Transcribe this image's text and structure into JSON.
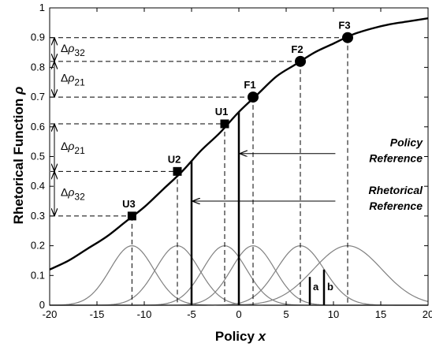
{
  "chart_data": {
    "type": "line",
    "xlabel": "Policy x",
    "ylabel": "Rhetorical Function ρ",
    "xlim": [
      -20,
      20
    ],
    "ylim": [
      0,
      1
    ],
    "x_ticks": [
      -20,
      -15,
      -10,
      -5,
      0,
      5,
      10,
      15,
      20
    ],
    "x_tick_labels": [
      "-20",
      "-15",
      "-10",
      "-5",
      "0",
      "5",
      "10",
      "15",
      "20"
    ],
    "y_ticks": [
      0,
      0.1,
      0.2,
      0.3,
      0.4,
      0.5,
      0.6,
      0.7,
      0.8,
      0.9,
      1
    ],
    "y_tick_labels": [
      "0",
      "0.1",
      "0.2",
      "0.3",
      "0.4",
      "0.5",
      "0.6",
      "0.7",
      "0.8",
      "0.9",
      "1"
    ],
    "grid": false,
    "rhetorical_curve": {
      "color": "#000000",
      "x": [
        -20,
        -18,
        -16,
        -14,
        -12,
        -10,
        -8,
        -6,
        -4,
        -2,
        0,
        2,
        4,
        6,
        8,
        10,
        12,
        14,
        16,
        18,
        20
      ],
      "y": [
        0.12,
        0.15,
        0.19,
        0.23,
        0.28,
        0.33,
        0.39,
        0.45,
        0.52,
        0.58,
        0.65,
        0.71,
        0.77,
        0.81,
        0.85,
        0.88,
        0.91,
        0.93,
        0.945,
        0.955,
        0.965
      ]
    },
    "points": [
      {
        "label": "U3",
        "x": -11.3,
        "y": 0.3,
        "marker": "square"
      },
      {
        "label": "U2",
        "x": -6.5,
        "y": 0.45,
        "marker": "square"
      },
      {
        "label": "U1",
        "x": -1.5,
        "y": 0.61,
        "marker": "square"
      },
      {
        "label": "F1",
        "x": 1.5,
        "y": 0.7,
        "marker": "circle"
      },
      {
        "label": "F2",
        "x": 6.5,
        "y": 0.82,
        "marker": "circle"
      },
      {
        "label": "F3",
        "x": 11.5,
        "y": 0.9,
        "marker": "circle"
      }
    ],
    "gaussians": {
      "color": "#808080",
      "peak": 0.2,
      "curves": [
        {
          "center": -11.3,
          "sigma": 2.3
        },
        {
          "center": -6.5,
          "sigma": 2.3
        },
        {
          "center": -1.5,
          "sigma": 2.3
        },
        {
          "center": 1.5,
          "sigma": 2.3
        },
        {
          "center": 6.5,
          "sigma": 2.5
        },
        {
          "center": 11.5,
          "sigma": 3.6
        }
      ]
    },
    "reference_lines": [
      {
        "name": "Policy Reference",
        "x": 0,
        "y_top": 0.65
      },
      {
        "name": "Rhetorical Reference",
        "x": -5,
        "y_top": 0.51
      }
    ],
    "annotations": [
      {
        "text_line1": "Policy",
        "text_line2": "Reference",
        "points_to_x": 0,
        "at_y": 0.51
      },
      {
        "text_line1": "Rhetorical",
        "text_line2": "Reference",
        "points_to_x": -5,
        "at_y": 0.35
      }
    ],
    "deltas": [
      {
        "label_main": "Δ",
        "label_rho": "ρ",
        "label_sub": "32",
        "from": 0.82,
        "to": 0.9
      },
      {
        "label_main": "Δ",
        "label_rho": "ρ",
        "label_sub": "21",
        "from": 0.7,
        "to": 0.82
      },
      {
        "label_main": "Δ",
        "label_rho": "ρ",
        "label_sub": "21",
        "from": 0.45,
        "to": 0.61
      },
      {
        "label_main": "Δ",
        "label_rho": "ρ",
        "label_sub": "32",
        "from": 0.3,
        "to": 0.45
      }
    ],
    "bars": [
      {
        "label": "a",
        "x": 7.5,
        "height": 0.095
      },
      {
        "label": "b",
        "x": 9.0,
        "height": 0.12
      }
    ]
  }
}
